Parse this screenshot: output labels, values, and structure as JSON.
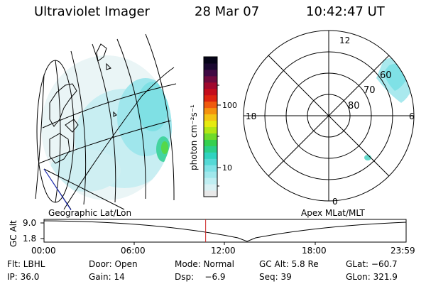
{
  "header": {
    "title": "Ultraviolet Imager",
    "date": "28 Mar 07",
    "time": "10:42:47 UT"
  },
  "left_panel": {
    "label": "Geographic Lat/Lon"
  },
  "right_panel": {
    "label": "Apex MLat/MLT",
    "mlt_labels": [
      "12",
      "18",
      "6",
      "0"
    ],
    "lat_labels": [
      "60",
      "70",
      "80"
    ]
  },
  "colorbar": {
    "unit_label": "photon cm⁻²s⁻¹",
    "ticks": [
      "100",
      "10"
    ],
    "colors": [
      "#e8e8e8",
      "#d9f1f4",
      "#bfeef2",
      "#a0e8ec",
      "#7fe2e6",
      "#55d9d6",
      "#2fd3c0",
      "#2bcf8a",
      "#35d04f",
      "#6fda2a",
      "#b3e614",
      "#e6ea10",
      "#f3c414",
      "#f4920e",
      "#ef5a0e",
      "#dd2410",
      "#c40d1c",
      "#a0082e",
      "#6e0a3e",
      "#400a44",
      "#1a0830",
      "#060418"
    ]
  },
  "timeline": {
    "axis_label": "GC Alt",
    "y_ticks": [
      "9.0",
      "1.8"
    ],
    "x_ticks": [
      "00:00",
      "06:00",
      "12:00",
      "18:00",
      "23:59"
    ],
    "current_time_hours": 10.713,
    "colors": {
      "marker": "#cc2222"
    }
  },
  "info": {
    "flt": "Flt: LBHL",
    "door": "Door: Open",
    "mode": "Mode: Normal",
    "gc_alt": "GC Alt: 5.8 Re",
    "glat": "GLat: −60.7",
    "ip": "IP: 36.0",
    "gain": "Gain: 14",
    "dsp": "Dsp:    −6.9",
    "seq": "Seq: 39",
    "glon": "GLon: 321.9"
  }
}
